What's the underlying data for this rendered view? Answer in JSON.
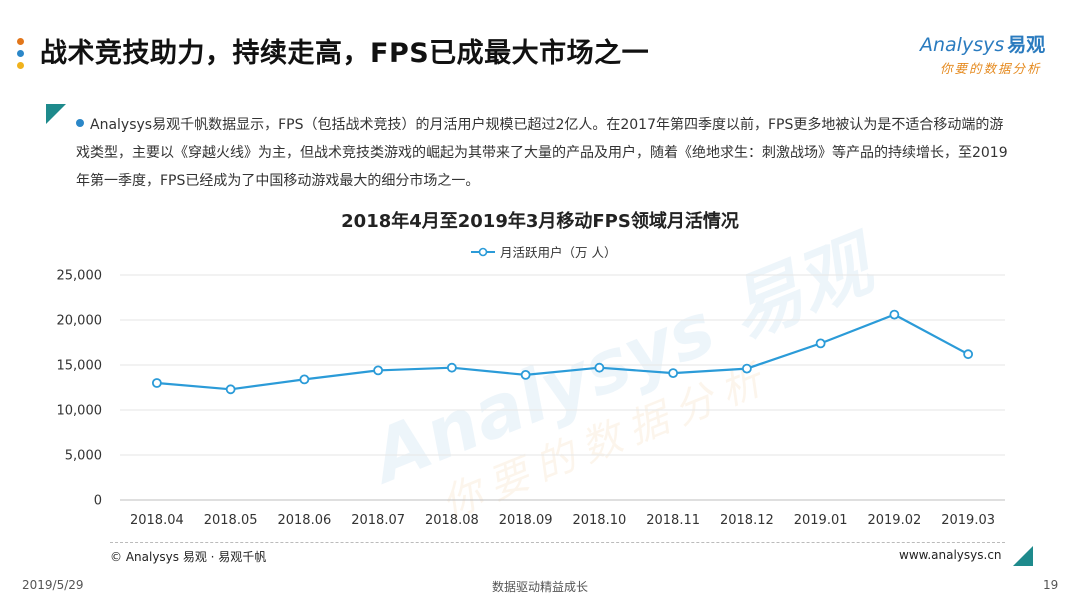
{
  "header": {
    "title": "战术竞技助力，持续走高，FPS已成最大市场之一",
    "dot_colors": [
      "#e2761a",
      "#2b87c8",
      "#f0b21c"
    ]
  },
  "logo": {
    "brand_en": "Analysys",
    "brand_cn": "易观",
    "slogan": "你要的数据分析"
  },
  "bullet": {
    "text": "Analysys易观千帆数据显示，FPS（包括战术竞技）的月活用户规模已超过2亿人。在2017年第四季度以前，FPS更多地被认为是不适合移动端的游戏类型，主要以《穿越火线》为主，但战术竞技类游戏的崛起为其带来了大量的产品及用户，随着《绝地求生：刺激战场》等产品的持续增长，至2019年第一季度，FPS已经成为了中国移动游戏最大的细分市场之一。"
  },
  "chart_data": {
    "type": "line",
    "title": "2018年4月至2019年3月移动FPS领域月活情况",
    "categories": [
      "2018.04",
      "2018.05",
      "2018.06",
      "2018.07",
      "2018.08",
      "2018.09",
      "2018.10",
      "2018.11",
      "2018.12",
      "2019.01",
      "2019.02",
      "2019.03"
    ],
    "series": [
      {
        "name": "月活跃用户（万 人）",
        "color": "#2b9bd8",
        "values": [
          13000,
          12300,
          13400,
          14400,
          14700,
          13900,
          14700,
          14100,
          14600,
          17400,
          20600,
          16200
        ]
      }
    ],
    "yticks": [
      "0",
      "5,000",
      "10,000",
      "15,000",
      "20,000",
      "25,000"
    ],
    "ylim": [
      0,
      25000
    ],
    "grid": true,
    "legend": "top-center"
  },
  "footer": {
    "copyright": "© Analysys 易观 · 易观千帆",
    "website": "www.analysys.cn",
    "date": "2019/5/29",
    "slogan": "数据驱动精益成长",
    "page": "19"
  }
}
